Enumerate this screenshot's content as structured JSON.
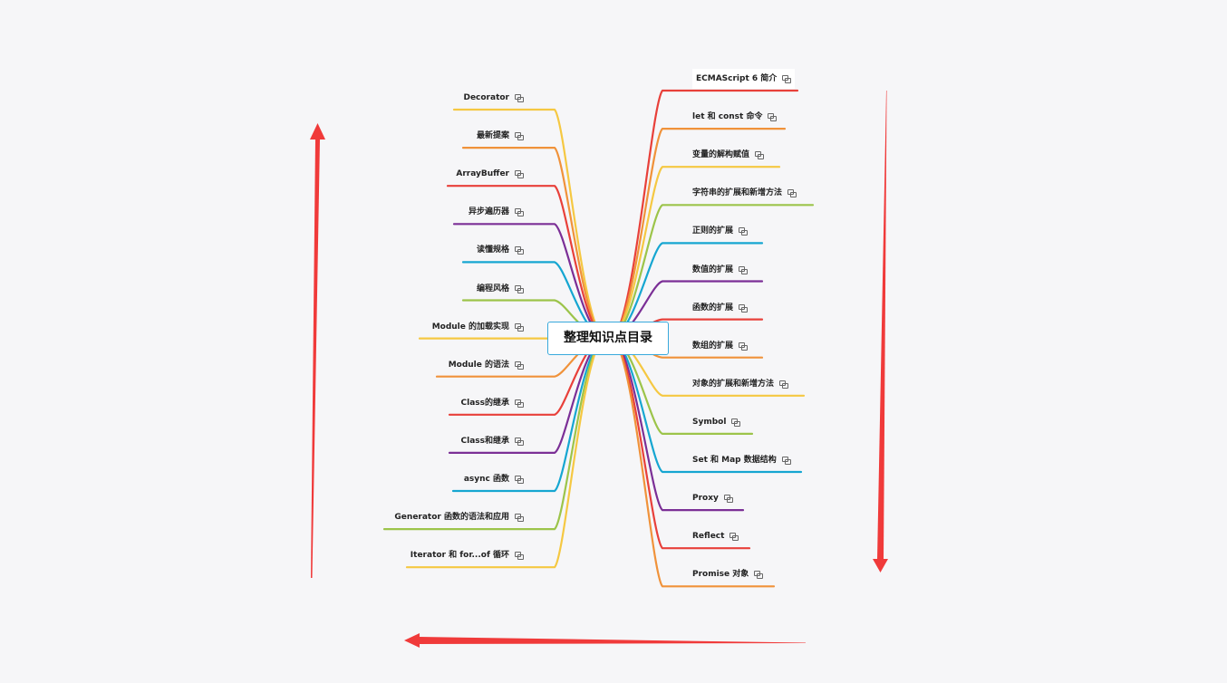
{
  "root": {
    "title": "整理知识点目录"
  },
  "colors": {
    "red": "#e8403a",
    "orange": "#f0923a",
    "yellow": "#f5c842",
    "green": "#9cc44a",
    "cyan": "#16a6d1",
    "purple": "#7b2f96",
    "arrow": "#f03a3a",
    "root_border": "#39a9dc"
  },
  "right_topics": [
    {
      "label": "ECMAScript 6 简介",
      "color": "red",
      "selected": true
    },
    {
      "label": "let 和 const 命令",
      "color": "orange"
    },
    {
      "label": "变量的解构赋值",
      "color": "yellow"
    },
    {
      "label": "字符串的扩展和新增方法",
      "color": "green"
    },
    {
      "label": "正则的扩展",
      "color": "cyan"
    },
    {
      "label": "数值的扩展",
      "color": "purple"
    },
    {
      "label": "函数的扩展",
      "color": "red"
    },
    {
      "label": "数组的扩展",
      "color": "orange"
    },
    {
      "label": "对象的扩展和新增方法",
      "color": "yellow"
    },
    {
      "label": "Symbol",
      "color": "green"
    },
    {
      "label": "Set 和 Map 数据结构",
      "color": "cyan"
    },
    {
      "label": "Proxy",
      "color": "purple"
    },
    {
      "label": "Reflect",
      "color": "red"
    },
    {
      "label": "Promise 对象",
      "color": "orange"
    }
  ],
  "left_topics": [
    {
      "label": "Decorator",
      "color": "yellow"
    },
    {
      "label": "最新提案",
      "color": "orange"
    },
    {
      "label": "ArrayBuffer",
      "color": "red"
    },
    {
      "label": "异步遍历器",
      "color": "purple"
    },
    {
      "label": "读懂规格",
      "color": "cyan"
    },
    {
      "label": "编程风格",
      "color": "green"
    },
    {
      "label": "Module 的加载实现",
      "color": "yellow"
    },
    {
      "label": "Module 的语法",
      "color": "orange"
    },
    {
      "label": "Class的继承",
      "color": "red"
    },
    {
      "label": "Class和继承",
      "color": "purple"
    },
    {
      "label": "async 函数",
      "color": "cyan"
    },
    {
      "label": "Generator 函数的语法和应用",
      "color": "green"
    },
    {
      "label": "Iterator 和 for...of 循环",
      "color": "yellow"
    }
  ],
  "icons": {
    "topic_link": "link-icon"
  }
}
